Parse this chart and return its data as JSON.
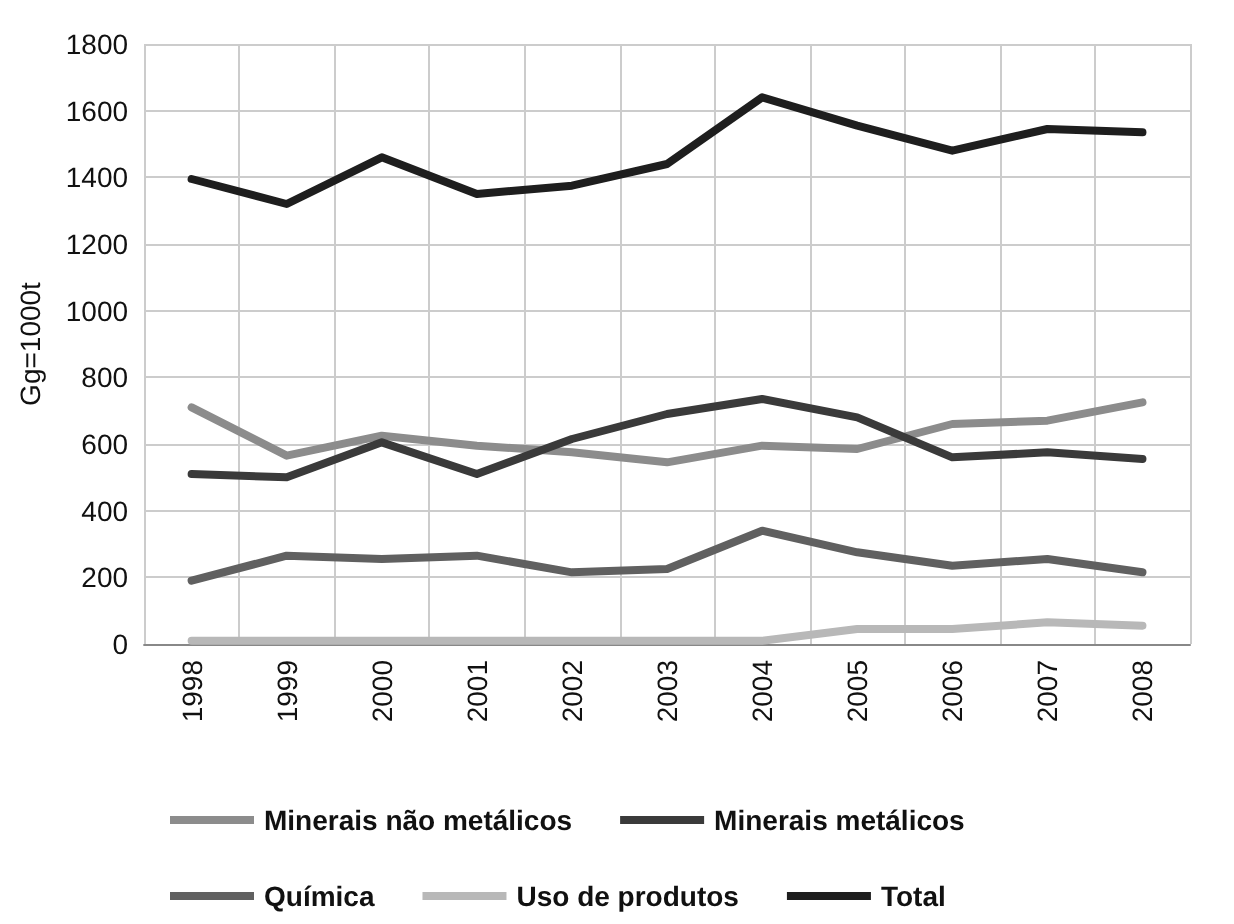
{
  "chart_data": {
    "type": "line",
    "ylabel": "Gg=1000t",
    "categories": [
      "1998",
      "1999",
      "2000",
      "2001",
      "2002",
      "2003",
      "2004",
      "2005",
      "2006",
      "2007",
      "2008"
    ],
    "series": [
      {
        "name": "Minerais não metálicos",
        "color": "#8c8c8c",
        "values": [
          710,
          565,
          625,
          595,
          575,
          545,
          595,
          585,
          660,
          670,
          725
        ]
      },
      {
        "name": "Minerais metálicos",
        "color": "#3a3a3a",
        "values": [
          510,
          500,
          605,
          510,
          615,
          690,
          735,
          680,
          560,
          575,
          555
        ]
      },
      {
        "name": "Química",
        "color": "#606060",
        "values": [
          190,
          265,
          255,
          265,
          215,
          225,
          340,
          275,
          235,
          255,
          215
        ]
      },
      {
        "name": "Uso de produtos",
        "color": "#b8b8b8",
        "values": [
          10,
          10,
          10,
          10,
          10,
          10,
          10,
          45,
          45,
          65,
          55
        ]
      },
      {
        "name": "Total",
        "color": "#1e1e1e",
        "values": [
          1395,
          1320,
          1460,
          1350,
          1375,
          1440,
          1640,
          1555,
          1480,
          1545,
          1535
        ]
      }
    ],
    "ylim": [
      0,
      1800
    ],
    "yticks": [
      0,
      200,
      400,
      600,
      800,
      1000,
      1200,
      1400,
      1600,
      1800
    ],
    "grid": true,
    "legend": "bottom",
    "marker": "none",
    "line_style": "solid"
  }
}
